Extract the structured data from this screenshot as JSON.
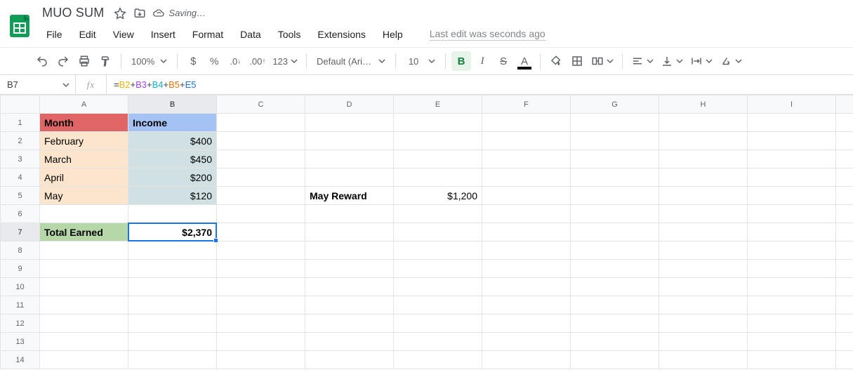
{
  "app": {
    "doc_title": "MUO SUM",
    "saving_label": "Saving…",
    "last_edit_label": "Last edit was seconds ago"
  },
  "menus": [
    "File",
    "Edit",
    "View",
    "Insert",
    "Format",
    "Data",
    "Tools",
    "Extensions",
    "Help"
  ],
  "toolbar": {
    "zoom": "100%",
    "more_formats": "123",
    "font": "Default (Ari…",
    "font_size": "10"
  },
  "name_box": "B7",
  "formula": {
    "raw": "=B2+B3+B4+B5+E5",
    "tokens": [
      {
        "t": "=",
        "c": "#3c4043"
      },
      {
        "t": "B2",
        "c": "#f4b400"
      },
      {
        "t": "+",
        "c": "#3c4043"
      },
      {
        "t": "B3",
        "c": "#a142f4"
      },
      {
        "t": "+",
        "c": "#3c4043"
      },
      {
        "t": "B4",
        "c": "#12b5cb"
      },
      {
        "t": "+",
        "c": "#3c4043"
      },
      {
        "t": "B5",
        "c": "#e8710a"
      },
      {
        "t": "+",
        "c": "#3c4043"
      },
      {
        "t": "E5",
        "c": "#1a73e8"
      }
    ]
  },
  "columns": [
    "A",
    "B",
    "C",
    "D",
    "E",
    "F",
    "G",
    "H",
    "I",
    ""
  ],
  "selected_col": "B",
  "selected_row": 7,
  "row_numbers": [
    1,
    2,
    3,
    4,
    5,
    6,
    7,
    8,
    9,
    10,
    11,
    12,
    13,
    14
  ],
  "cells": {
    "A1": {
      "v": "Month",
      "cls": "hdr-a"
    },
    "B1": {
      "v": "Income",
      "cls": "hdr-b"
    },
    "A2": {
      "v": "February",
      "cls": "month"
    },
    "B2": {
      "v": "$400",
      "cls": "inc"
    },
    "A3": {
      "v": "March",
      "cls": "month"
    },
    "B3": {
      "v": "$450",
      "cls": "inc"
    },
    "A4": {
      "v": "April",
      "cls": "month"
    },
    "B4": {
      "v": "$200",
      "cls": "inc"
    },
    "A5": {
      "v": "May",
      "cls": "month"
    },
    "B5": {
      "v": "$120",
      "cls": "inc"
    },
    "D5": {
      "v": "May Reward",
      "cls": "bold"
    },
    "E5": {
      "v": "$1,200",
      "cls": "right"
    },
    "A7": {
      "v": "Total Earned",
      "cls": "total-label"
    },
    "B7": {
      "v": "$2,370",
      "cls": "right bold",
      "active": true
    }
  },
  "colors": {
    "header_a": "#e06666",
    "header_b": "#a4c2f4",
    "month_bg": "#fce5cd",
    "income_bg": "#d0e0e3",
    "total_bg": "#b6d7a8",
    "selection_blue": "#1a73e8",
    "bold_active_bg": "#e6f4ea",
    "bold_active_fg": "#188038"
  }
}
